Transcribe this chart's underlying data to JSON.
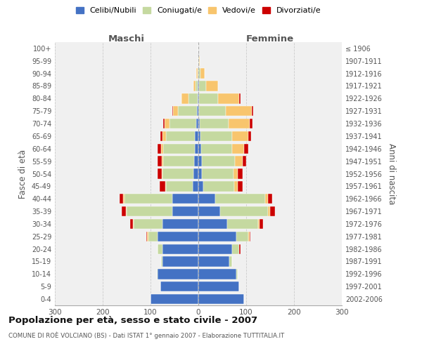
{
  "age_groups": [
    "0-4",
    "5-9",
    "10-14",
    "15-19",
    "20-24",
    "25-29",
    "30-34",
    "35-39",
    "40-44",
    "45-49",
    "50-54",
    "55-59",
    "60-64",
    "65-69",
    "70-74",
    "75-79",
    "80-84",
    "85-89",
    "90-94",
    "95-99",
    "100+"
  ],
  "birth_years": [
    "2002-2006",
    "1997-2001",
    "1992-1996",
    "1987-1991",
    "1982-1986",
    "1977-1981",
    "1972-1976",
    "1967-1971",
    "1962-1966",
    "1957-1961",
    "1952-1956",
    "1947-1951",
    "1942-1946",
    "1937-1941",
    "1932-1936",
    "1927-1931",
    "1922-1926",
    "1917-1921",
    "1912-1916",
    "1907-1911",
    "≤ 1906"
  ],
  "maschi": {
    "celibi": [
      100,
      80,
      85,
      75,
      75,
      85,
      75,
      55,
      55,
      12,
      10,
      9,
      8,
      7,
      5,
      3,
      1,
      1,
      0,
      0,
      0
    ],
    "coniugati": [
      0,
      0,
      2,
      3,
      10,
      20,
      60,
      95,
      100,
      55,
      65,
      65,
      65,
      60,
      55,
      40,
      20,
      5,
      2,
      0,
      0
    ],
    "vedovi": [
      0,
      0,
      0,
      0,
      0,
      2,
      2,
      2,
      2,
      2,
      2,
      3,
      5,
      8,
      10,
      10,
      15,
      5,
      2,
      0,
      0
    ],
    "divorziati": [
      0,
      0,
      0,
      0,
      0,
      2,
      5,
      8,
      8,
      12,
      8,
      8,
      7,
      5,
      3,
      2,
      0,
      0,
      0,
      0,
      0
    ]
  },
  "femmine": {
    "nubili": [
      95,
      85,
      80,
      65,
      70,
      80,
      60,
      45,
      35,
      10,
      8,
      7,
      6,
      5,
      3,
      2,
      1,
      1,
      0,
      0,
      0
    ],
    "coniugate": [
      0,
      0,
      2,
      5,
      15,
      25,
      65,
      100,
      105,
      65,
      65,
      70,
      65,
      65,
      60,
      55,
      40,
      15,
      5,
      2,
      0
    ],
    "vedove": [
      0,
      0,
      0,
      0,
      1,
      2,
      3,
      5,
      5,
      8,
      10,
      15,
      25,
      35,
      45,
      55,
      45,
      25,
      8,
      1,
      0
    ],
    "divorziate": [
      0,
      0,
      0,
      0,
      2,
      2,
      8,
      10,
      10,
      10,
      10,
      8,
      8,
      5,
      5,
      2,
      2,
      0,
      0,
      0,
      0
    ]
  },
  "colors": {
    "celibi": "#4472C4",
    "coniugati": "#C5D9A0",
    "vedovi": "#F8C56D",
    "divorziati": "#CC0000"
  },
  "xlim": 300,
  "title": "Popolazione per età, sesso e stato civile - 2007",
  "subtitle": "COMUNE DI ROÈ VOLCIANO (BS) - Dati ISTAT 1° gennaio 2007 - Elaborazione TUTTITALIA.IT",
  "ylabel_left": "Fasce di età",
  "ylabel_right": "Anni di nascita",
  "legend_labels": [
    "Celibi/Nubili",
    "Coniugati/e",
    "Vedovi/e",
    "Divorziati/e"
  ],
  "maschi_label": "Maschi",
  "femmine_label": "Femmine",
  "background_color": "#ffffff",
  "plot_bg_color": "#f0f0f0"
}
